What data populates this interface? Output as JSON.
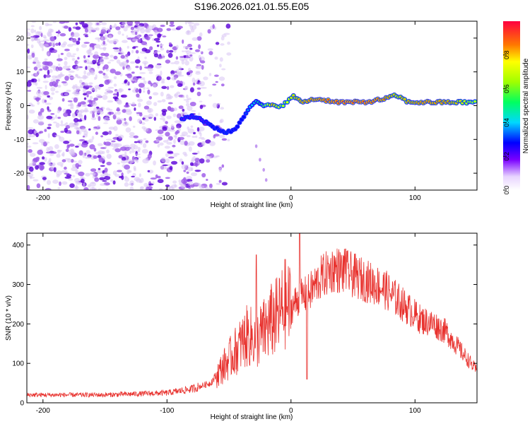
{
  "title": "S196.2026.021.01.55.E05",
  "colors": {
    "snr_line": "#e8322e",
    "scatter_low": "#d8c4f4",
    "scatter_mid": "#9b56e8",
    "scatter_high": "#5a00d8",
    "axis": "#000000"
  },
  "chart_data": [
    {
      "type": "heatmap",
      "name": "spectrogram",
      "xlabel": "Height of straight line (km)",
      "ylabel": "Frequency (Hz)",
      "xlim": [
        -213,
        150
      ],
      "ylim": [
        -25,
        25
      ],
      "xticks": [
        -200,
        -100,
        0,
        100
      ],
      "yticks": [
        -20,
        -10,
        0,
        10,
        20
      ],
      "xtick_labels": [
        "-200",
        "-100",
        "0",
        "100"
      ],
      "ytick_labels": [
        "-20",
        "-10",
        "0",
        "10",
        "20"
      ],
      "noise_region_x": [
        -213,
        -70
      ],
      "ridge": [
        {
          "x": -88,
          "f": -4,
          "a": 0.18
        },
        {
          "x": -80,
          "f": -3,
          "a": 0.22
        },
        {
          "x": -72,
          "f": -4,
          "a": 0.2
        },
        {
          "x": -65,
          "f": -6,
          "a": 0.25
        },
        {
          "x": -58,
          "f": -7,
          "a": 0.28
        },
        {
          "x": -52,
          "f": -8,
          "a": 0.3
        },
        {
          "x": -45,
          "f": -7,
          "a": 0.26
        },
        {
          "x": -38,
          "f": -3,
          "a": 0.28
        },
        {
          "x": -33,
          "f": 0,
          "a": 0.4
        },
        {
          "x": -28,
          "f": 1,
          "a": 0.45
        },
        {
          "x": -22,
          "f": 0,
          "a": 0.6
        },
        {
          "x": -15,
          "f": 0,
          "a": 0.85
        },
        {
          "x": -8,
          "f": 0,
          "a": 0.7
        },
        {
          "x": -3,
          "f": 1,
          "a": 0.75
        },
        {
          "x": 2,
          "f": 3,
          "a": 0.8
        },
        {
          "x": 8,
          "f": 1,
          "a": 0.85
        },
        {
          "x": 20,
          "f": 2,
          "a": 0.9
        },
        {
          "x": 40,
          "f": 1,
          "a": 0.95
        },
        {
          "x": 60,
          "f": 1,
          "a": 0.95
        },
        {
          "x": 75,
          "f": 2,
          "a": 0.9
        },
        {
          "x": 85,
          "f": 3,
          "a": 0.8
        },
        {
          "x": 95,
          "f": 1,
          "a": 0.85
        },
        {
          "x": 110,
          "f": 1,
          "a": 0.9
        },
        {
          "x": 130,
          "f": 1,
          "a": 0.85
        },
        {
          "x": 150,
          "f": 1,
          "a": 0.7
        }
      ],
      "colorbar": {
        "label": "Normalized spectral amplitude",
        "range": [
          0,
          1
        ],
        "ticks": [
          0.0,
          0.2,
          0.4,
          0.6,
          0.8
        ],
        "tick_labels": [
          "0.0",
          "0.2",
          "0.4",
          "0.6",
          "0.8"
        ]
      }
    },
    {
      "type": "line",
      "name": "snr",
      "xlabel": "Height of straight line (km)",
      "ylabel": "SNR (10 * v/v)",
      "xlim": [
        -213,
        150
      ],
      "ylim": [
        0,
        430
      ],
      "xticks": [
        -200,
        -100,
        0,
        100
      ],
      "yticks": [
        0,
        100,
        200,
        300,
        400
      ],
      "xtick_labels": [
        "-200",
        "-100",
        "0",
        "100"
      ],
      "ytick_labels": [
        "0",
        "100",
        "200",
        "300",
        "400"
      ],
      "envelope": {
        "x": [
          -213,
          -150,
          -100,
          -80,
          -65,
          -55,
          -45,
          -35,
          -28,
          -22,
          -15,
          -10,
          -5,
          0,
          5,
          15,
          25,
          35,
          45,
          60,
          75,
          90,
          105,
          115,
          125,
          135,
          145,
          150
        ],
        "y": [
          20,
          20,
          25,
          35,
          50,
          90,
          130,
          170,
          160,
          180,
          210,
          220,
          250,
          240,
          260,
          280,
          320,
          340,
          330,
          310,
          290,
          250,
          210,
          200,
          180,
          140,
          100,
          80
        ]
      },
      "peaks": [
        {
          "x": -28,
          "y": 375
        },
        {
          "x": 7,
          "y": 430
        },
        {
          "x": 44,
          "y": 390
        }
      ],
      "dip": {
        "x": 13,
        "y": 60
      }
    }
  ]
}
